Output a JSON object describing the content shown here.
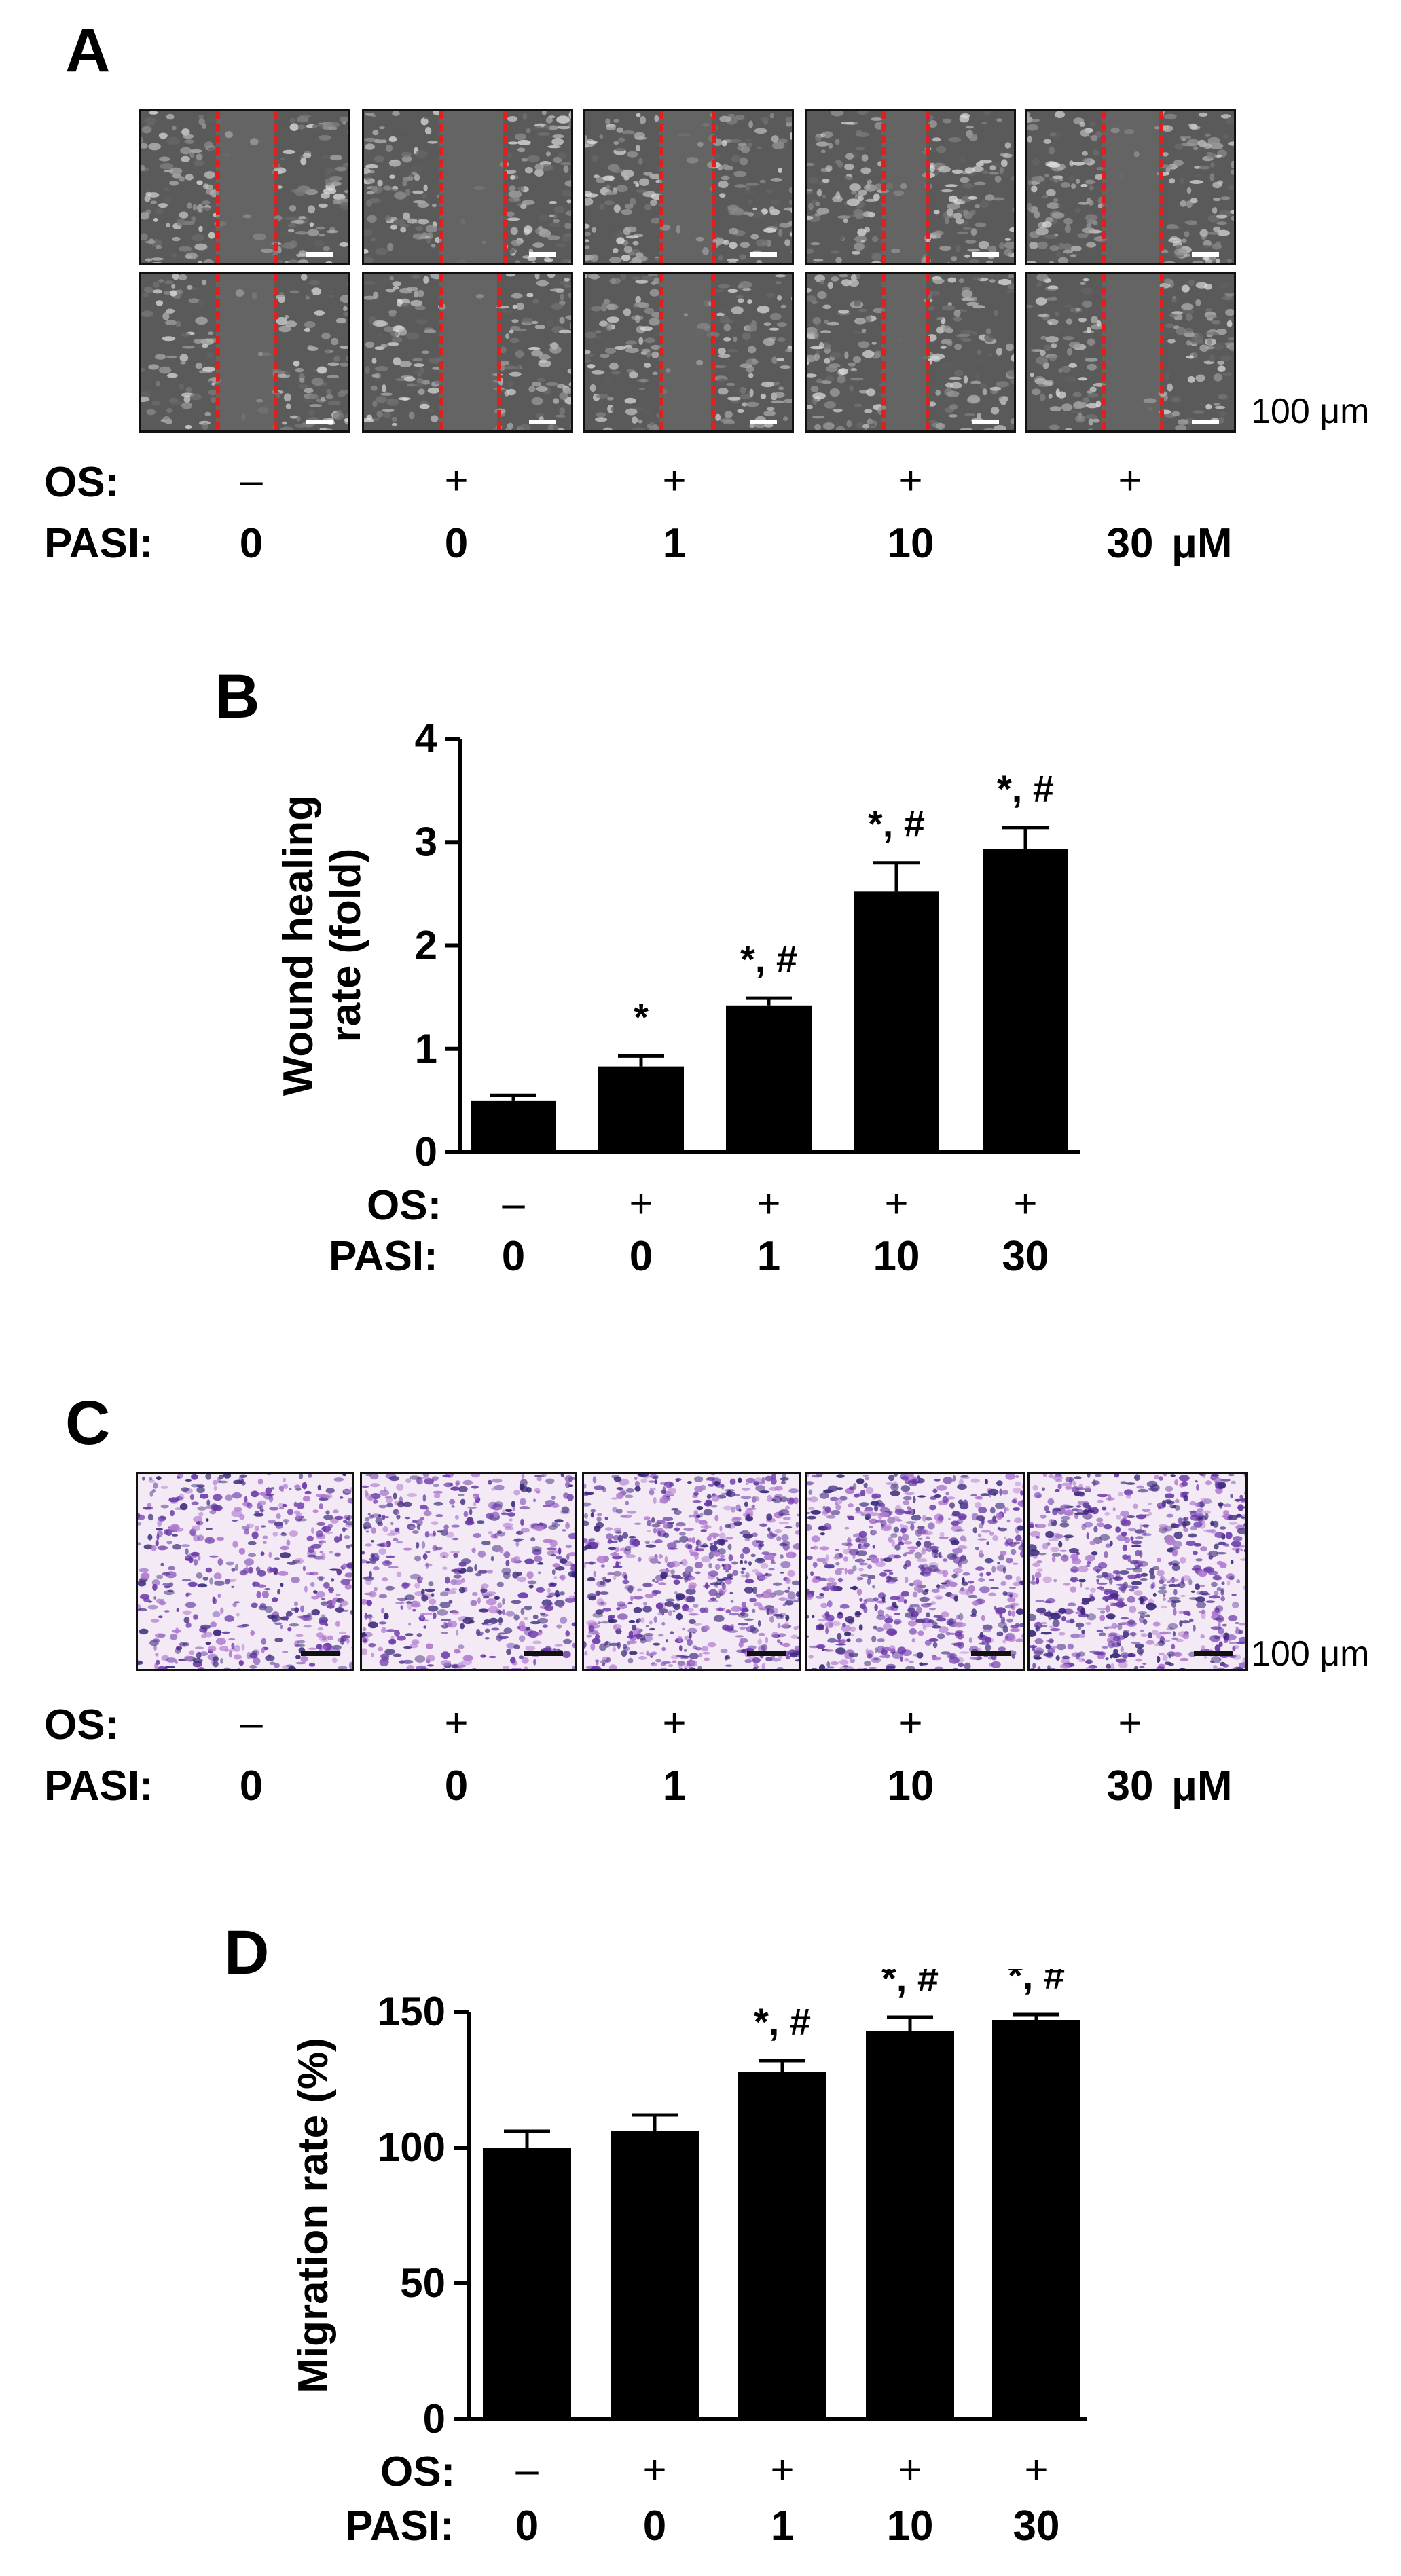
{
  "panels": {
    "A": {
      "letter": "A",
      "scale_label": "100 μm",
      "os_label": "OS:",
      "pasi_label": "PASI:",
      "unit": "μM",
      "os": [
        "–",
        "+",
        "+",
        "+",
        "+"
      ],
      "pasi": [
        "0",
        "0",
        "1",
        "10",
        "30"
      ]
    },
    "B": {
      "letter": "B",
      "os_label": "OS:",
      "pasi_label": "PASI:",
      "os": [
        "–",
        "+",
        "+",
        "+",
        "+"
      ],
      "pasi": [
        "0",
        "0",
        "1",
        "10",
        "30"
      ]
    },
    "C": {
      "letter": "C",
      "scale_label": "100 μm",
      "os_label": "OS:",
      "pasi_label": "PASI:",
      "unit": "μM",
      "os": [
        "–",
        "+",
        "+",
        "+",
        "+"
      ],
      "pasi": [
        "0",
        "0",
        "1",
        "10",
        "30"
      ]
    },
    "D": {
      "letter": "D",
      "os_label": "OS:",
      "pasi_label": "PASI:",
      "os": [
        "–",
        "+",
        "+",
        "+",
        "+"
      ],
      "pasi": [
        "0",
        "0",
        "1",
        "10",
        "30"
      ]
    }
  },
  "colors": {
    "bar": "#000000",
    "cut_line": "#e0201e",
    "stain": "#6a3aa8",
    "micro_bg": "#5a5a5a"
  },
  "chart_data": [
    {
      "panel": "B",
      "type": "bar",
      "categories": [
        "0",
        "0",
        "1",
        "10",
        "30"
      ],
      "values": [
        0.5,
        0.83,
        1.42,
        2.52,
        2.93
      ],
      "errors": [
        0.05,
        0.1,
        0.07,
        0.28,
        0.21
      ],
      "annotations": [
        "",
        "*",
        "*, #",
        "*, #",
        "*, #"
      ],
      "ylabel": "Wound healing rate (fold)",
      "ylim": [
        0,
        4
      ],
      "yticks": [
        0,
        1,
        2,
        3,
        4
      ]
    },
    {
      "panel": "D",
      "type": "bar",
      "categories": [
        "0",
        "0",
        "1",
        "10",
        "30"
      ],
      "values": [
        100,
        106,
        128,
        143,
        147
      ],
      "errors": [
        6,
        6,
        4,
        5,
        2
      ],
      "annotations": [
        "",
        "",
        "*, #",
        "*, #",
        "*, #"
      ],
      "ylabel": "Migration  rate (%)",
      "ylim": [
        0,
        150
      ],
      "yticks": [
        0,
        50,
        100,
        150
      ]
    }
  ]
}
